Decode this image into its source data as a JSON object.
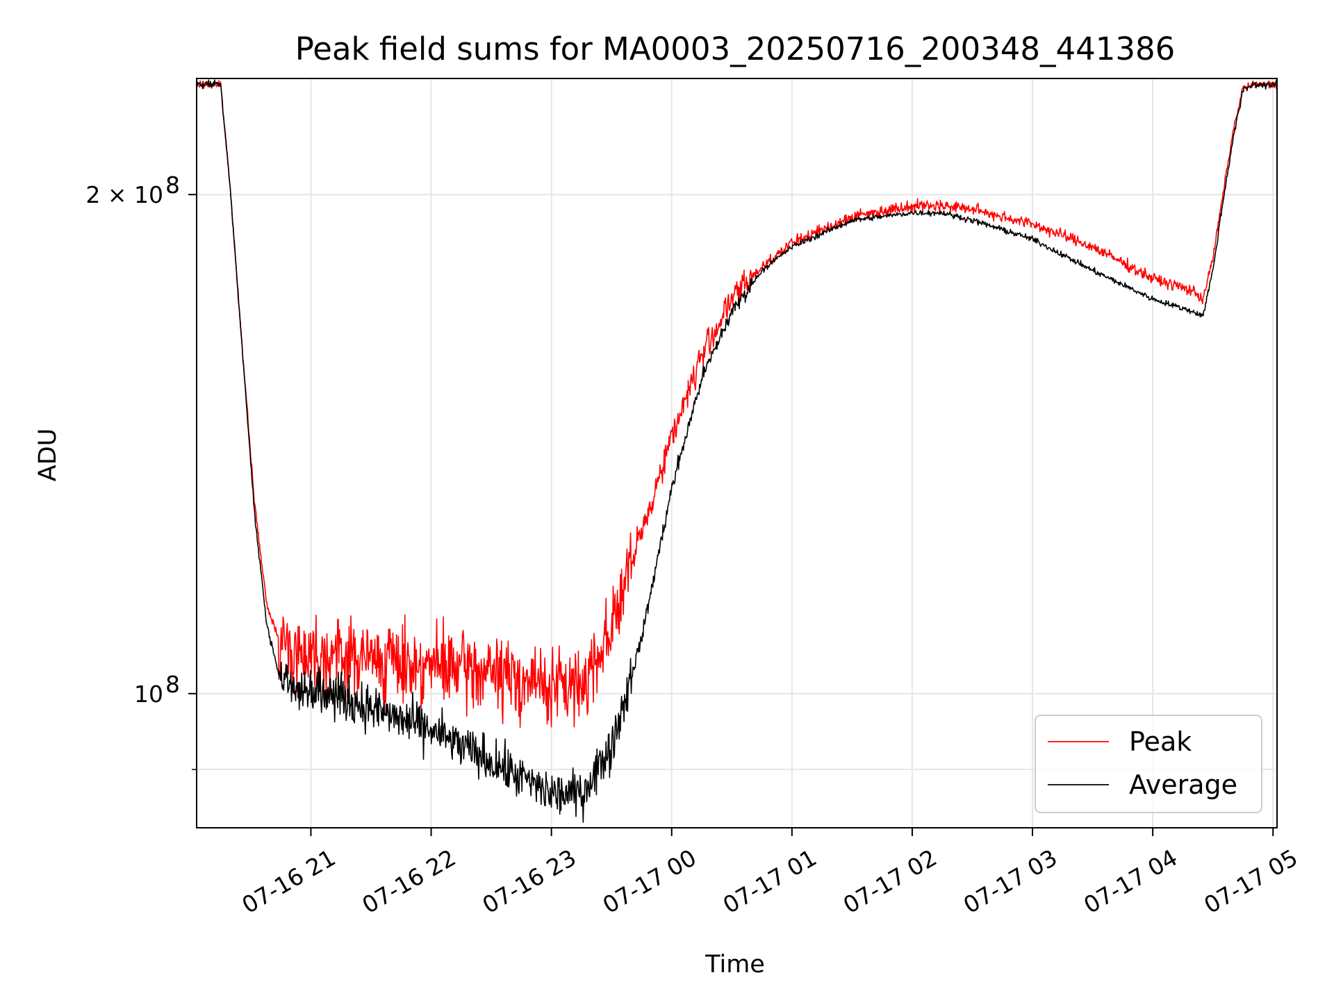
{
  "chart_data": {
    "type": "line",
    "title": "Peak field sums for MA0003_20250716_200348_441386",
    "xlabel": "Time",
    "ylabel": "ADU",
    "yscale": "log",
    "ylim": [
      83000000,
      235000000
    ],
    "xlim": [
      "2025-07-16 20:03",
      "2025-07-17 05:02"
    ],
    "grid": true,
    "legend_position": "lower-right",
    "x_ticks": [
      "07-16 21",
      "07-16 22",
      "07-16 23",
      "07-17 00",
      "07-17 01",
      "07-17 02",
      "07-17 03",
      "07-17 04",
      "07-17 05"
    ],
    "y_ticks": [
      {
        "label_base": "10",
        "label_exp": "8",
        "value": 100000000
      },
      {
        "label_base": "2 × 10",
        "label_exp": "8",
        "value": 200000000
      }
    ],
    "y_minor_ticks": [
      90000000
    ],
    "series": [
      {
        "name": "Peak",
        "color": "#ff0000",
        "x": [
          "2025-07-16 20:03",
          "2025-07-16 20:15",
          "2025-07-16 20:20",
          "2025-07-16 20:26",
          "2025-07-16 20:32",
          "2025-07-16 20:38",
          "2025-07-16 20:44",
          "2025-07-16 20:50",
          "2025-07-16 21:00",
          "2025-07-16 21:30",
          "2025-07-16 22:00",
          "2025-07-16 22:30",
          "2025-07-16 23:00",
          "2025-07-16 23:15",
          "2025-07-16 23:30",
          "2025-07-16 23:45",
          "2025-07-17 00:00",
          "2025-07-17 00:15",
          "2025-07-17 00:30",
          "2025-07-17 00:45",
          "2025-07-17 01:00",
          "2025-07-17 01:30",
          "2025-07-17 02:00",
          "2025-07-17 02:15",
          "2025-07-17 02:30",
          "2025-07-17 03:00",
          "2025-07-17 03:30",
          "2025-07-17 04:00",
          "2025-07-17 04:20",
          "2025-07-17 04:25",
          "2025-07-17 04:30",
          "2025-07-17 04:35",
          "2025-07-17 04:40",
          "2025-07-17 04:45",
          "2025-07-17 04:50",
          "2025-07-17 05:02"
        ],
        "y": [
          233000000,
          233000000,
          200000000,
          160000000,
          130000000,
          113000000,
          108000000,
          106000000,
          106000000,
          105000000,
          104000000,
          103000000,
          101000000,
          101000000,
          110000000,
          125000000,
          143000000,
          160000000,
          173000000,
          181000000,
          187000000,
          194000000,
          197000000,
          197000000,
          196000000,
          192000000,
          186000000,
          178000000,
          175000000,
          173000000,
          183000000,
          200000000,
          218000000,
          232000000,
          233000000,
          233000000
        ]
      },
      {
        "name": "Average",
        "color": "#000000",
        "x": [
          "2025-07-16 20:03",
          "2025-07-16 20:15",
          "2025-07-16 20:20",
          "2025-07-16 20:26",
          "2025-07-16 20:32",
          "2025-07-16 20:38",
          "2025-07-16 20:44",
          "2025-07-16 20:50",
          "2025-07-16 21:00",
          "2025-07-16 21:30",
          "2025-07-16 22:00",
          "2025-07-16 22:30",
          "2025-07-16 23:00",
          "2025-07-16 23:15",
          "2025-07-16 23:30",
          "2025-07-16 23:45",
          "2025-07-17 00:00",
          "2025-07-17 00:15",
          "2025-07-17 00:30",
          "2025-07-17 00:45",
          "2025-07-17 01:00",
          "2025-07-17 01:30",
          "2025-07-17 02:00",
          "2025-07-17 02:15",
          "2025-07-17 02:30",
          "2025-07-17 03:00",
          "2025-07-17 03:30",
          "2025-07-17 04:00",
          "2025-07-17 04:20",
          "2025-07-17 04:25",
          "2025-07-17 04:30",
          "2025-07-17 04:35",
          "2025-07-17 04:40",
          "2025-07-17 04:45",
          "2025-07-17 04:50",
          "2025-07-17 05:02"
        ],
        "y": [
          233000000,
          233000000,
          200000000,
          160000000,
          128000000,
          110000000,
          103000000,
          101000000,
          101000000,
          98000000,
          95000000,
          91000000,
          87000000,
          87000000,
          93000000,
          108000000,
          133000000,
          155000000,
          170000000,
          180000000,
          186000000,
          193000000,
          195000000,
          195000000,
          193000000,
          188000000,
          180000000,
          173000000,
          170000000,
          169000000,
          180000000,
          198000000,
          216000000,
          231000000,
          233000000,
          233000000
        ]
      }
    ]
  }
}
